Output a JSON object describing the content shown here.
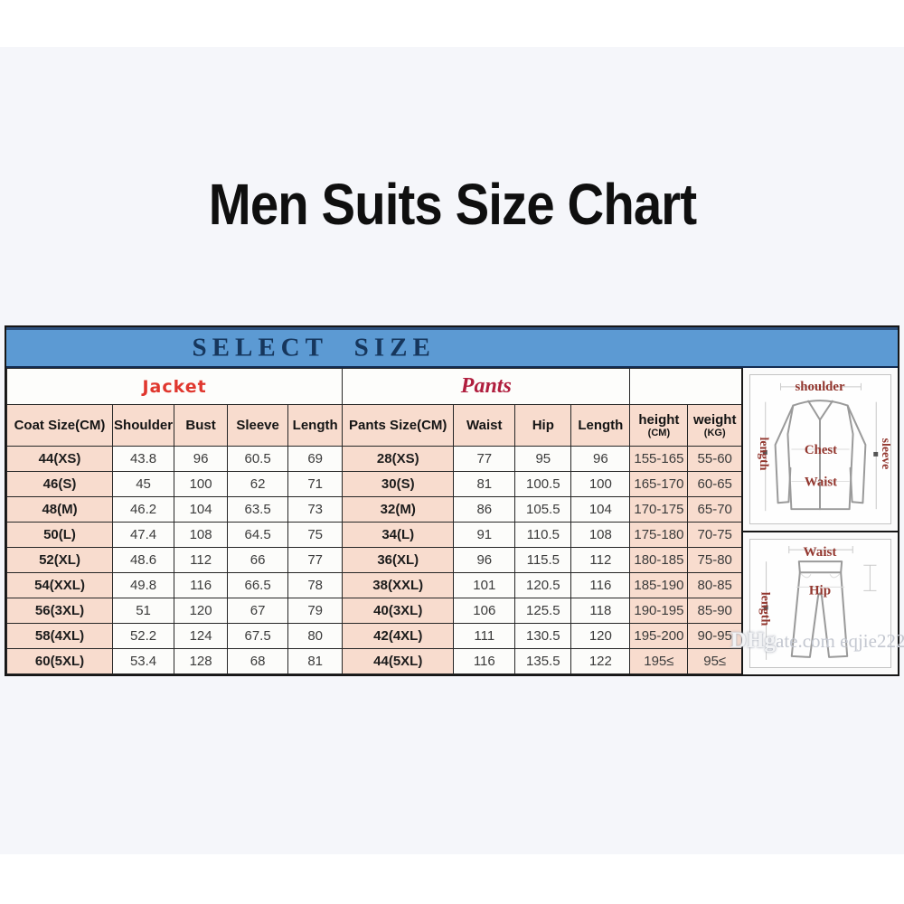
{
  "title": "Men Suits Size Chart",
  "table": {
    "select_size_label": "SELECT SIZE",
    "jacket_section_label": "Jacket",
    "pants_section_label": "Pants",
    "columns": [
      "Coat Size(CM)",
      "Shoulder",
      "Bust",
      "Sleeve",
      "Length",
      "Pants Size(CM)",
      "Waist",
      "Hip",
      "Length"
    ],
    "height_col": {
      "label": "height",
      "unit": "(CM)"
    },
    "weight_col": {
      "label": "weight",
      "unit": "(KG)"
    },
    "rows": [
      [
        "44(XS)",
        "43.8",
        "96",
        "60.5",
        "69",
        "28(XS)",
        "77",
        "95",
        "96",
        "155-165",
        "55-60"
      ],
      [
        "46(S)",
        "45",
        "100",
        "62",
        "71",
        "30(S)",
        "81",
        "100.5",
        "100",
        "165-170",
        "60-65"
      ],
      [
        "48(M)",
        "46.2",
        "104",
        "63.5",
        "73",
        "32(M)",
        "86",
        "105.5",
        "104",
        "170-175",
        "65-70"
      ],
      [
        "50(L)",
        "47.4",
        "108",
        "64.5",
        "75",
        "34(L)",
        "91",
        "110.5",
        "108",
        "175-180",
        "70-75"
      ],
      [
        "52(XL)",
        "48.6",
        "112",
        "66",
        "77",
        "36(XL)",
        "96",
        "115.5",
        "112",
        "180-185",
        "75-80"
      ],
      [
        "54(XXL)",
        "49.8",
        "116",
        "66.5",
        "78",
        "38(XXL)",
        "101",
        "120.5",
        "116",
        "185-190",
        "80-85"
      ],
      [
        "56(3XL)",
        "51",
        "120",
        "67",
        "79",
        "40(3XL)",
        "106",
        "125.5",
        "118",
        "190-195",
        "85-90"
      ],
      [
        "58(4XL)",
        "52.2",
        "124",
        "67.5",
        "80",
        "42(4XL)",
        "111",
        "130.5",
        "120",
        "195-200",
        "90-95"
      ],
      [
        "60(5XL)",
        "53.4",
        "128",
        "68",
        "81",
        "44(5XL)",
        "116",
        "135.5",
        "122",
        "195≤",
        "95≤"
      ]
    ]
  },
  "illustrations": {
    "jacket": {
      "shoulder_label": "shoulder",
      "length_label": "length",
      "sleeve_label": "sleeve",
      "chest_label": "Chest",
      "waist_label": "Waist"
    },
    "pants": {
      "waist_label": "Waist",
      "length_label": "length",
      "hip_label": "Hip"
    }
  },
  "watermark": {
    "logo": "DHg",
    "rest": "ate.com eqjie222"
  },
  "colors": {
    "photo_background": "#f5f6fa",
    "select_bar_blue": "#5c9ad3",
    "select_text_navy": "#16365c",
    "cell_peach": "#f8dcce",
    "jacket_red": "#e0372e",
    "pants_crimson": "#b01e3e",
    "illustration_label_red": "#93372f",
    "border_black": "#161616"
  }
}
